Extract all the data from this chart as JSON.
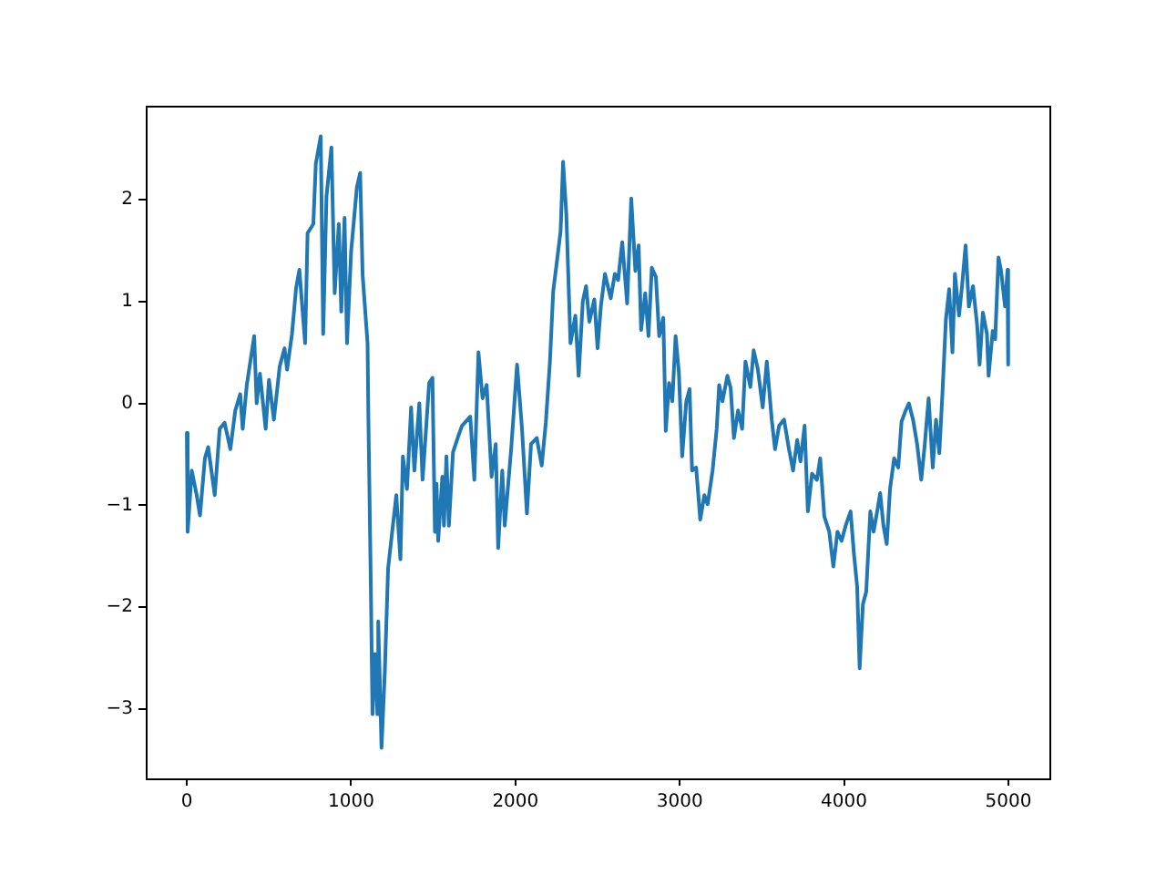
{
  "chart_data": {
    "type": "line",
    "xlim": [
      -250,
      5250
    ],
    "ylim": [
      -3.68,
      2.92
    ],
    "xticks": [
      0,
      1000,
      2000,
      3000,
      4000,
      5000
    ],
    "yticks": [
      -3,
      -2,
      -1,
      0,
      1,
      2
    ],
    "grid": false,
    "legend": false,
    "marker": "none",
    "line_style": "solid",
    "series": [
      {
        "color": "#1f77b4",
        "x": [
          0,
          5,
          30,
          60,
          80,
          110,
          130,
          170,
          200,
          230,
          265,
          295,
          325,
          340,
          365,
          410,
          425,
          445,
          480,
          500,
          530,
          565,
          595,
          610,
          640,
          665,
          685,
          700,
          720,
          735,
          770,
          785,
          815,
          830,
          850,
          880,
          900,
          925,
          940,
          960,
          975,
          1000,
          1035,
          1055,
          1070,
          1100,
          1105,
          1120,
          1130,
          1145,
          1160,
          1165,
          1185,
          1205,
          1225,
          1250,
          1275,
          1300,
          1315,
          1340,
          1365,
          1385,
          1415,
          1435,
          1475,
          1495,
          1510,
          1520,
          1530,
          1555,
          1565,
          1580,
          1595,
          1620,
          1655,
          1675,
          1725,
          1750,
          1775,
          1800,
          1825,
          1855,
          1880,
          1895,
          1920,
          1935,
          1975,
          2010,
          2040,
          2070,
          2095,
          2130,
          2160,
          2185,
          2210,
          2230,
          2250,
          2275,
          2290,
          2310,
          2335,
          2365,
          2385,
          2410,
          2430,
          2450,
          2480,
          2500,
          2520,
          2545,
          2580,
          2605,
          2625,
          2650,
          2680,
          2705,
          2730,
          2750,
          2765,
          2790,
          2810,
          2830,
          2855,
          2875,
          2900,
          2915,
          2935,
          2955,
          2975,
          2995,
          3015,
          3040,
          3060,
          3075,
          3100,
          3125,
          3150,
          3170,
          3200,
          3225,
          3240,
          3260,
          3290,
          3310,
          3330,
          3355,
          3380,
          3400,
          3430,
          3450,
          3475,
          3505,
          3530,
          3560,
          3580,
          3605,
          3635,
          3665,
          3690,
          3715,
          3735,
          3760,
          3780,
          3805,
          3835,
          3855,
          3880,
          3910,
          3935,
          3960,
          3985,
          4010,
          4040,
          4060,
          4080,
          4095,
          4115,
          4135,
          4160,
          4180,
          4205,
          4220,
          4240,
          4260,
          4280,
          4305,
          4330,
          4350,
          4375,
          4395,
          4420,
          4445,
          4470,
          4490,
          4515,
          4540,
          4560,
          4580,
          4600,
          4620,
          4640,
          4660,
          4675,
          4700,
          4720,
          4740,
          4760,
          4785,
          4810,
          4825,
          4845,
          4870,
          4880,
          4905,
          4920,
          4940,
          4955,
          4980,
          4995,
          4999
        ],
        "values": [
          -0.29,
          -1.26,
          -0.66,
          -0.9,
          -1.1,
          -0.54,
          -0.43,
          -0.9,
          -0.25,
          -0.19,
          -0.45,
          -0.07,
          0.09,
          -0.25,
          0.18,
          0.66,
          0,
          0.29,
          -0.25,
          0.23,
          -0.16,
          0.36,
          0.54,
          0.33,
          0.68,
          1.13,
          1.31,
          1.0,
          0.59,
          1.67,
          1.76,
          2.35,
          2.62,
          0.68,
          2.03,
          2.51,
          1.08,
          1.76,
          0.9,
          1.82,
          0.59,
          1.49,
          2.12,
          2.26,
          1.26,
          0.59,
          -0.13,
          -1.8,
          -3.05,
          -2.46,
          -3.05,
          -2.14,
          -3.38,
          -2.64,
          -1.62,
          -1.26,
          -0.9,
          -1.53,
          -0.52,
          -0.84,
          -0.04,
          -0.66,
          0.0,
          -0.75,
          0.2,
          0.25,
          -1.26,
          -0.79,
          -1.35,
          -0.72,
          -1.2,
          -0.52,
          -1.2,
          -0.48,
          -0.31,
          -0.22,
          -0.13,
          -0.75,
          0.5,
          0.05,
          0.18,
          -0.72,
          -0.4,
          -1.42,
          -0.66,
          -1.2,
          -0.43,
          0.38,
          -0.25,
          -1.08,
          -0.4,
          -0.34,
          -0.61,
          -0.19,
          0.41,
          1.1,
          1.36,
          1.69,
          2.37,
          1.85,
          0.59,
          0.86,
          0.27,
          1.0,
          1.15,
          0.8,
          1.02,
          0.54,
          0.95,
          1.27,
          1.03,
          1.27,
          1.21,
          1.58,
          0.98,
          2.01,
          1.3,
          1.55,
          0.72,
          1.08,
          0.66,
          1.33,
          1.24,
          0.66,
          0.84,
          -0.27,
          0.2,
          0.02,
          0.66,
          0.3,
          -0.52,
          0.02,
          0.14,
          -0.66,
          -0.63,
          -1.14,
          -0.9,
          -0.99,
          -0.66,
          -0.25,
          0.18,
          0.02,
          0.27,
          0.15,
          -0.34,
          -0.07,
          -0.25,
          0.41,
          0.16,
          0.52,
          0.34,
          -0.04,
          0.41,
          -0.16,
          -0.45,
          -0.22,
          -0.16,
          -0.45,
          -0.66,
          -0.36,
          -0.57,
          -0.22,
          -1.06,
          -0.69,
          -0.75,
          -0.54,
          -1.11,
          -1.26,
          -1.6,
          -1.26,
          -1.35,
          -1.2,
          -1.06,
          -1.47,
          -1.8,
          -2.6,
          -1.97,
          -1.85,
          -1.06,
          -1.26,
          -1.03,
          -0.88,
          -1.2,
          -1.38,
          -0.84,
          -0.54,
          -0.63,
          -0.18,
          -0.07,
          0.0,
          -0.16,
          -0.4,
          -0.75,
          -0.43,
          0.05,
          -0.63,
          -0.16,
          -0.49,
          0.13,
          0.82,
          1.12,
          0.5,
          1.27,
          0.86,
          1.18,
          1.55,
          0.95,
          1.15,
          0.77,
          0.38,
          0.89,
          0.68,
          0.27,
          0.71,
          0.63,
          1.43,
          1.31,
          0.95,
          1.31,
          0.38
        ]
      }
    ]
  }
}
